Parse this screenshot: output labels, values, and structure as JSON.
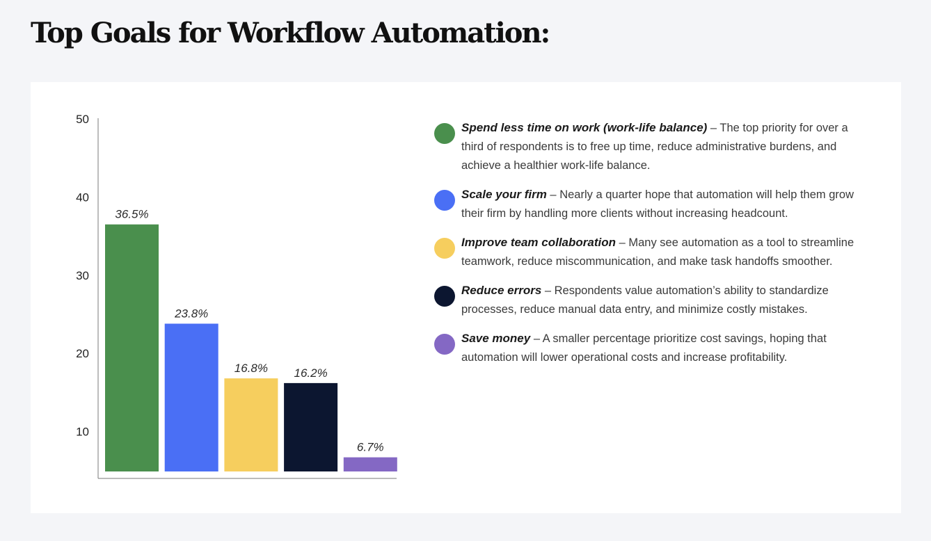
{
  "page": {
    "title": "Top Goals for Workflow Automation:"
  },
  "chart_data": {
    "type": "bar",
    "categories": [
      "Spend less time on work (work-life balance)",
      "Scale your firm",
      "Improve team collaboration",
      "Reduce errors",
      "Save money"
    ],
    "values": [
      36.5,
      23.8,
      16.8,
      16.2,
      6.7
    ],
    "value_labels": [
      "36.5%",
      "23.8%",
      "16.8%",
      "16.2%",
      "6.7%"
    ],
    "colors": [
      "#4a8f4d",
      "#4a6ff5",
      "#f6ce5e",
      "#0c1630",
      "#8468c4"
    ],
    "yticks": [
      "10",
      "20",
      "30",
      "40",
      "50"
    ],
    "ytick_values": [
      10,
      20,
      30,
      40,
      50
    ],
    "ylim": [
      4,
      50
    ],
    "grid": false,
    "legend": "right"
  },
  "legend": {
    "items": [
      {
        "term": "Spend less time on work (work-life balance)",
        "separator": " – ",
        "description": "The top priority for over a third of respondents is to free up time, reduce administrative burdens, and achieve a healthier work-life balance.",
        "color": "#4a8f4d"
      },
      {
        "term": "Scale your firm",
        "separator": " – ",
        "description": "Nearly a quarter hope that automation will help them grow their firm by handling more clients without increasing headcount.",
        "color": "#4a6ff5"
      },
      {
        "term": "Improve team collaboration",
        "separator": " – ",
        "description": "Many see automation as a tool to streamline teamwork, reduce miscommunication, and make task handoffs smoother.",
        "color": "#f6ce5e"
      },
      {
        "term": "Reduce errors",
        "separator": " – ",
        "description": "Respondents value automation’s ability to standardize processes, reduce manual data entry, and minimize costly mistakes.",
        "color": "#0c1630"
      },
      {
        "term": "Save money",
        "separator": " – ",
        "description": "A smaller percentage prioritize cost savings, hoping that automation will lower operational costs and increase profitability.",
        "color": "#8468c4"
      }
    ]
  }
}
